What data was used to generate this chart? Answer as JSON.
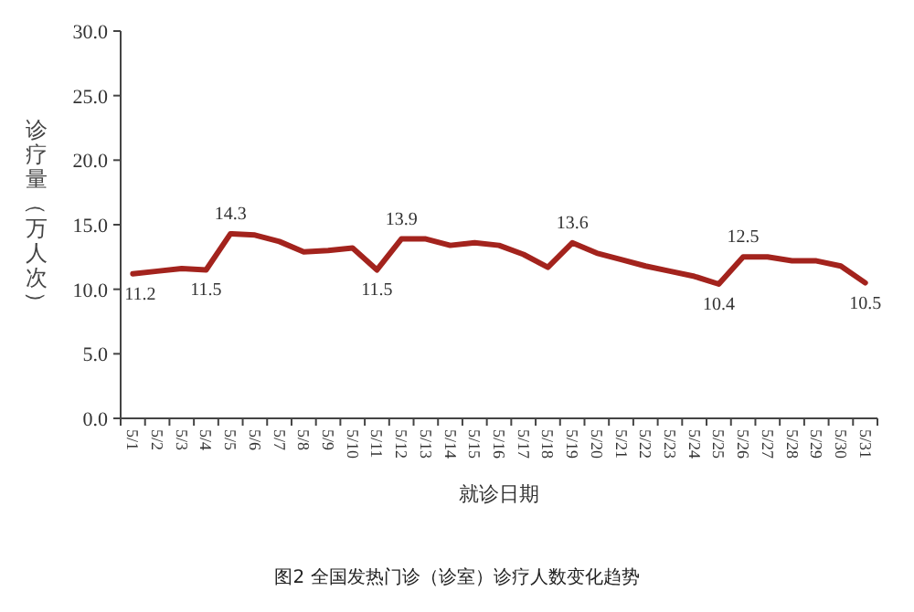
{
  "chart_data": {
    "type": "line",
    "categories": [
      "5/1",
      "5/2",
      "5/3",
      "5/4",
      "5/5",
      "5/6",
      "5/7",
      "5/8",
      "5/9",
      "5/10",
      "5/11",
      "5/12",
      "5/13",
      "5/14",
      "5/15",
      "5/16",
      "5/17",
      "5/18",
      "5/19",
      "5/20",
      "5/21",
      "5/22",
      "5/23",
      "5/24",
      "5/25",
      "5/26",
      "5/27",
      "5/28",
      "5/29",
      "5/30",
      "5/31"
    ],
    "series": [
      {
        "color": "#a3231d",
        "values": [
          11.2,
          11.4,
          11.6,
          11.5,
          14.3,
          14.2,
          13.7,
          12.9,
          13.0,
          13.2,
          11.5,
          13.9,
          13.9,
          13.4,
          13.6,
          13.4,
          12.7,
          11.7,
          13.6,
          12.8,
          12.3,
          11.8,
          11.4,
          11.0,
          10.4,
          12.5,
          12.5,
          12.2,
          12.2,
          11.8,
          10.5
        ],
        "value_labels": [
          "11.2",
          null,
          null,
          "11.5",
          "14.3",
          null,
          null,
          null,
          null,
          null,
          "11.5",
          "13.9",
          null,
          null,
          null,
          null,
          null,
          null,
          "13.6",
          null,
          null,
          null,
          null,
          null,
          "10.4",
          "12.5",
          null,
          null,
          null,
          null,
          "10.5"
        ]
      }
    ],
    "ylim": [
      0,
      30
    ],
    "yticks": [
      {
        "value": 0,
        "label": "0.0"
      },
      {
        "value": 5,
        "label": "5.0"
      },
      {
        "value": 10,
        "label": "10.0"
      },
      {
        "value": 15,
        "label": "15.0"
      },
      {
        "value": 20,
        "label": "20.0"
      },
      {
        "value": 25,
        "label": "25.0"
      },
      {
        "value": 30,
        "label": "30.0"
      }
    ],
    "xlabel": "就诊日期",
    "ylabel": "诊疗量（万人次）",
    "grid": false,
    "marker": "none",
    "line_style": "solid",
    "annotations": [
      "图2 全国发热门诊（诊室）诊疗人数变化趋势"
    ]
  }
}
